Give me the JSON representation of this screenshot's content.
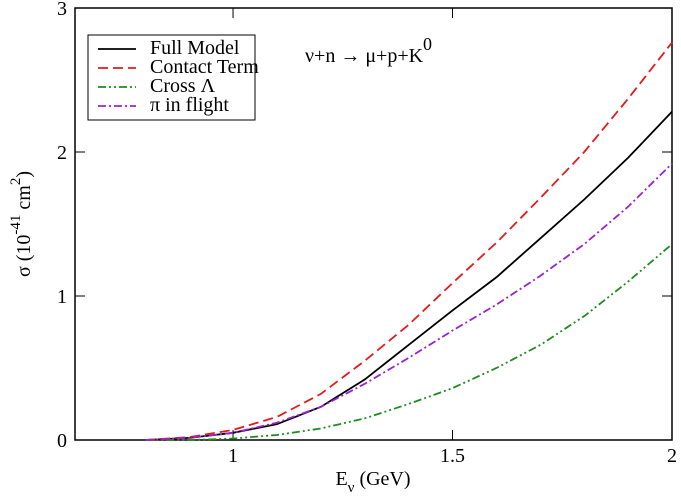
{
  "chart_data": {
    "type": "line",
    "title": "ν+n → μ+p+K",
    "title_sup": "0",
    "xlabel": [
      {
        "text": "E"
      },
      {
        "text": "ν",
        "shift": "sub"
      },
      {
        "text": " (GeV)"
      }
    ],
    "ylabel": [
      {
        "text": "σ (10"
      },
      {
        "text": "-41",
        "shift": "super"
      },
      {
        "text": " cm"
      },
      {
        "text": "2",
        "shift": "super"
      },
      {
        "text": ")"
      }
    ],
    "x": [
      0.8,
      0.9,
      1.0,
      1.1,
      1.2,
      1.3,
      1.4,
      1.5,
      1.6,
      1.7,
      1.8,
      1.9,
      2.0
    ],
    "series": [
      {
        "name": "Full Model",
        "color": "#000000",
        "dash": "",
        "values": [
          0,
          0.015,
          0.05,
          0.11,
          0.23,
          0.42,
          0.66,
          0.9,
          1.13,
          1.4,
          1.67,
          1.96,
          2.28
        ]
      },
      {
        "name": "Contact Term",
        "color": "#e8191c",
        "dash": "10 5",
        "values": [
          0,
          0.02,
          0.07,
          0.16,
          0.32,
          0.55,
          0.8,
          1.09,
          1.37,
          1.68,
          2.0,
          2.37,
          2.76
        ]
      },
      {
        "name": "Cross Λ",
        "color": "#1e8c1e",
        "dash": "8 3 2 3 2 3",
        "values": [
          0,
          0,
          0.01,
          0.035,
          0.08,
          0.15,
          0.25,
          0.36,
          0.5,
          0.66,
          0.86,
          1.1,
          1.36
        ]
      },
      {
        "name": "π in flight",
        "color": "#9b20d6",
        "dash": "8 3 2 3",
        "values": [
          0,
          0.015,
          0.05,
          0.12,
          0.23,
          0.39,
          0.57,
          0.76,
          0.94,
          1.14,
          1.36,
          1.62,
          1.92
        ]
      }
    ],
    "xlim": [
      0.64,
      2
    ],
    "ylim": [
      0,
      3
    ],
    "xticks": [
      1,
      1.5,
      2
    ],
    "yticks": [
      0,
      1,
      2,
      3
    ],
    "legend": "upper-left"
  }
}
